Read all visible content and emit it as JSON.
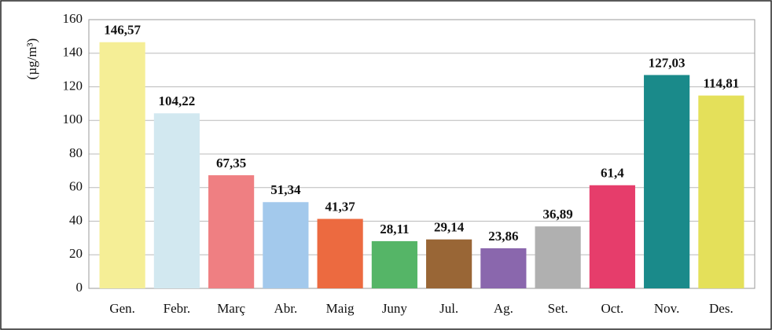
{
  "chart_data": {
    "type": "bar",
    "ylabel": "(µg/m³)",
    "categories": [
      "Gen.",
      "Febr.",
      "Març",
      "Abr.",
      "Maig",
      "Juny",
      "Jul.",
      "Ag.",
      "Set.",
      "Oct.",
      "Nov.",
      "Des."
    ],
    "values": [
      146.57,
      104.22,
      67.35,
      51.34,
      41.37,
      28.11,
      29.14,
      23.86,
      36.89,
      61.4,
      127.03,
      114.81
    ],
    "value_labels": [
      "146,57",
      "104,22",
      "67,35",
      "51,34",
      "41,37",
      "28,11",
      "29,14",
      "23,86",
      "36,89",
      "61,4",
      "127,03",
      "114,81"
    ],
    "colors": [
      "#f5ee96",
      "#d2e8f0",
      "#ef7f82",
      "#a3c9ec",
      "#ec6a40",
      "#55b567",
      "#996636",
      "#8a67ad",
      "#b0b0b0",
      "#e63d6b",
      "#1a8a8a",
      "#e4e05a"
    ],
    "ylim": [
      0,
      160
    ],
    "yticks": [
      0,
      20,
      40,
      60,
      80,
      100,
      120,
      140,
      160
    ],
    "grid": true
  }
}
